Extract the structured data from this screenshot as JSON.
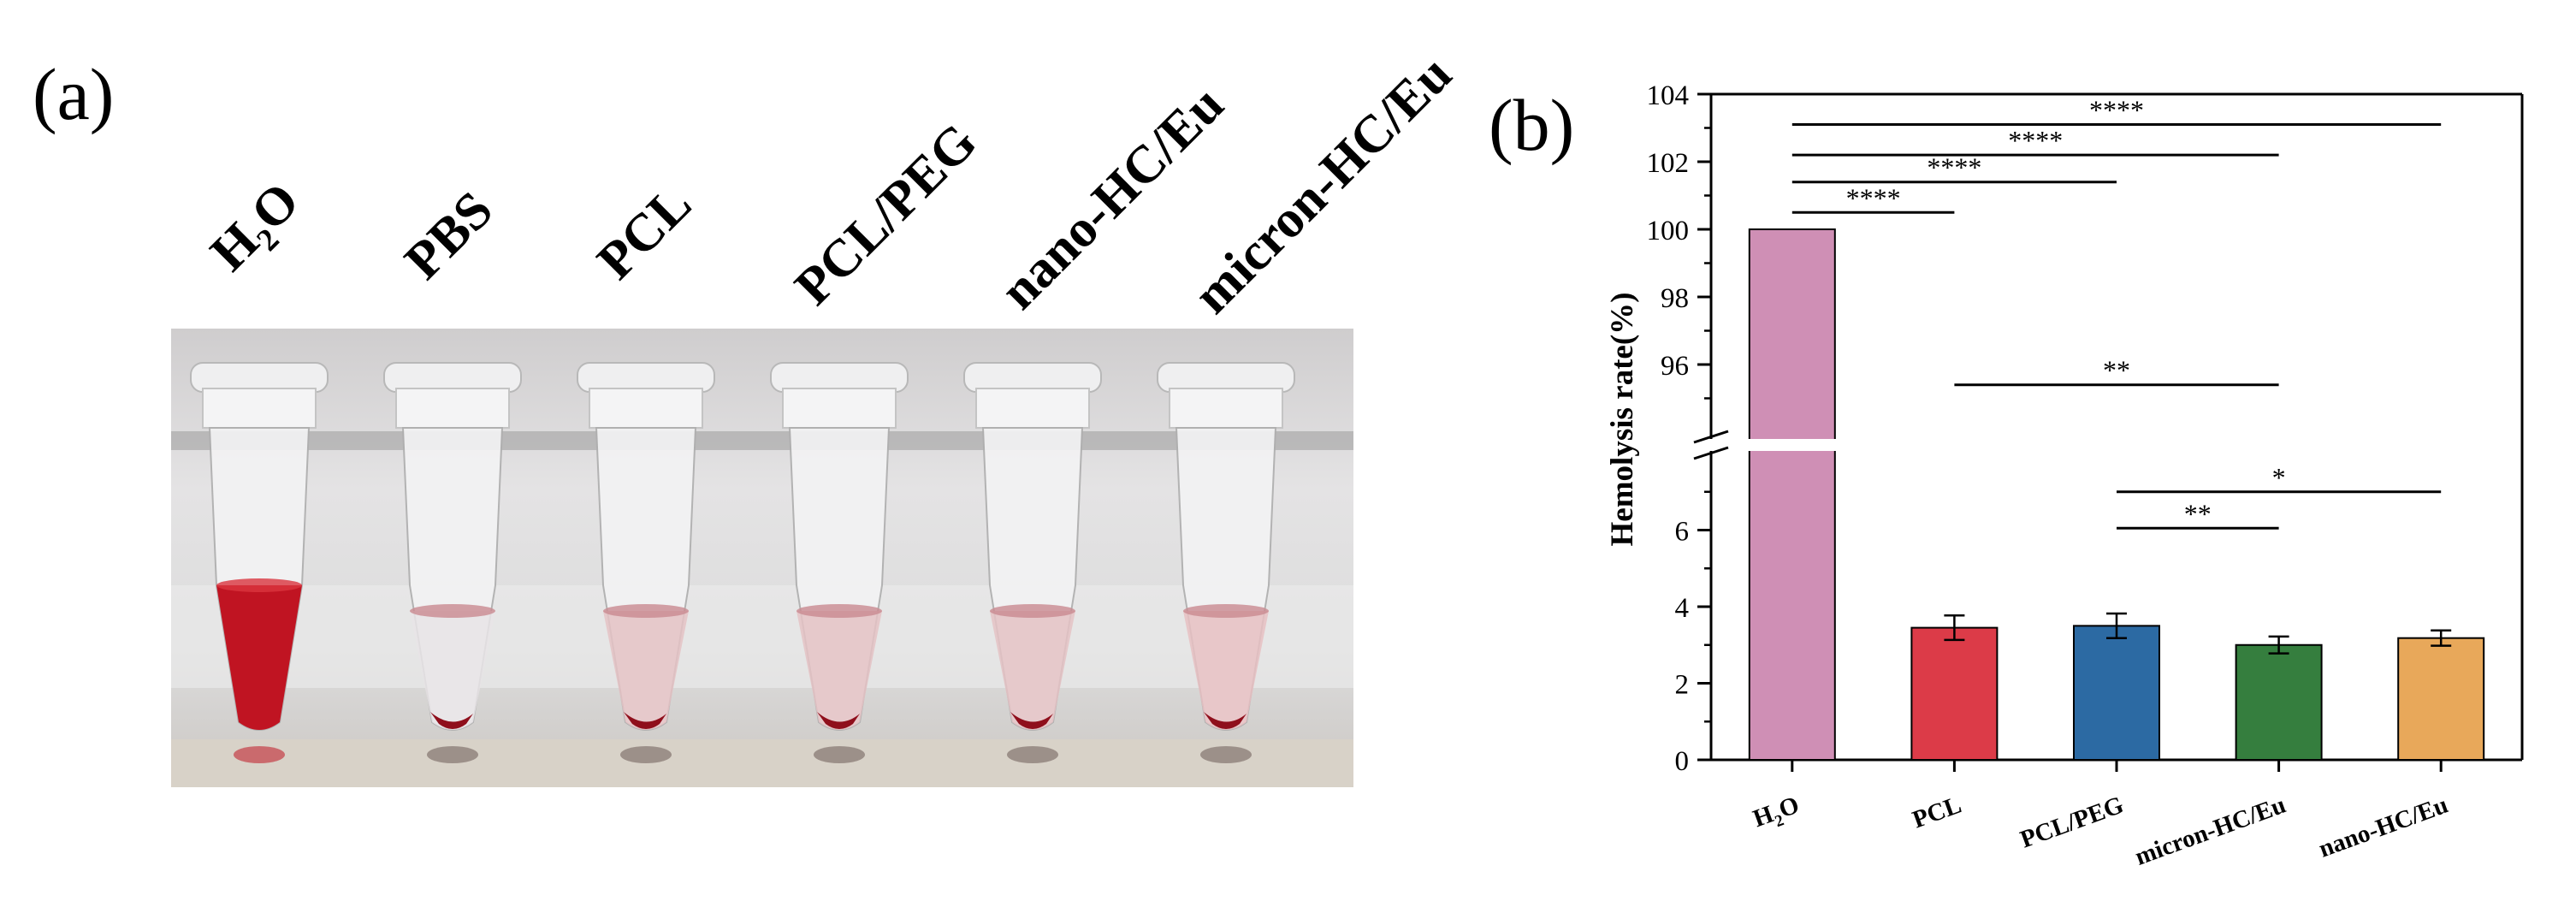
{
  "panel_a": {
    "label": "(a)",
    "tube_labels": [
      "H2O",
      "PBS",
      "PCL",
      "PCL/PEG",
      "nano-HC/Eu",
      "micron-HC/Eu"
    ],
    "tubes": [
      {
        "name": "H2O",
        "liquid_color": "#c01422",
        "lysed": true
      },
      {
        "name": "PBS",
        "liquid_color": "#e8e4e6",
        "lysed": false
      },
      {
        "name": "PCL",
        "liquid_color": "#e4c2c4",
        "lysed": false
      },
      {
        "name": "PCL/PEG",
        "liquid_color": "#e4c2c4",
        "lysed": false
      },
      {
        "name": "nano-HC/Eu",
        "liquid_color": "#e4c2c4",
        "lysed": false
      },
      {
        "name": "micron-HC/Eu",
        "liquid_color": "#e6c0c2",
        "lysed": false
      }
    ]
  },
  "panel_b": {
    "label": "(b)"
  },
  "chart_data": {
    "type": "bar",
    "categories": [
      "H2O",
      "PCL",
      "PCL/PEG",
      "micron-HC/Eu",
      "nano-HC/Eu"
    ],
    "values": [
      100,
      3.45,
      3.5,
      3.0,
      3.18
    ],
    "errors": [
      0,
      0.32,
      0.32,
      0.22,
      0.2
    ],
    "colors": [
      "#cf8fb5",
      "#dc3b48",
      "#2c6aa3",
      "#357e3e",
      "#e8a85a"
    ],
    "ylabel": "Hemolysis rate(%)",
    "xlabel": "",
    "axis_break": {
      "lower": [
        0,
        8
      ],
      "upper": [
        94,
        104
      ]
    },
    "yticks_lower": [
      "0",
      "2",
      "4",
      "6"
    ],
    "yticks_upper": [
      "96",
      "98",
      "100",
      "102",
      "104"
    ],
    "yticks_lower_values": [
      0,
      2,
      4,
      6
    ],
    "yticks_upper_values": [
      96,
      98,
      100,
      102,
      104
    ],
    "significance": [
      {
        "from": 0,
        "to": 4,
        "level": 103.1,
        "stars": "****"
      },
      {
        "from": 0,
        "to": 3,
        "level": 102.2,
        "stars": "****"
      },
      {
        "from": 0,
        "to": 2,
        "level": 101.4,
        "stars": "****"
      },
      {
        "from": 0,
        "to": 1,
        "level": 100.5,
        "stars": "****"
      },
      {
        "from": 1,
        "to": 3,
        "level": 95.4,
        "stars": "**"
      },
      {
        "from": 2,
        "to": 4,
        "level": 7.0,
        "stars": "*"
      },
      {
        "from": 2,
        "to": 3,
        "level": 6.05,
        "stars": "**"
      }
    ],
    "grid": false,
    "legend": "none"
  }
}
